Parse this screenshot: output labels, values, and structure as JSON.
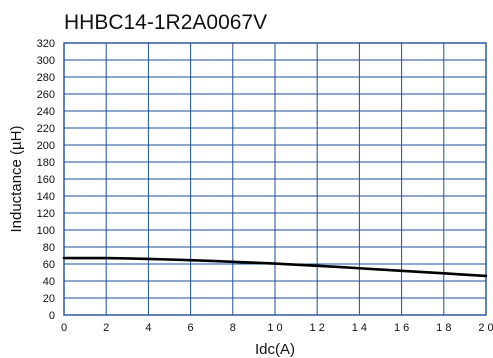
{
  "chart_data": {
    "type": "line",
    "title": "HHBC14-1R2A0067V",
    "xlabel": "Idc(A)",
    "ylabel": "Inductance (µH)",
    "xlim": [
      0,
      20
    ],
    "ylim": [
      0,
      320
    ],
    "x_ticks": [
      "0",
      "2",
      "4",
      "6",
      "8",
      "1 0",
      "1 2",
      "1 4",
      "1 6",
      "1 8",
      "2 0"
    ],
    "x_tick_values": [
      0,
      2,
      4,
      6,
      8,
      10,
      12,
      14,
      16,
      18,
      20
    ],
    "y_ticks": [
      "0",
      "20",
      "40",
      "60",
      "80",
      "100",
      "120",
      "140",
      "160",
      "180",
      "200",
      "220",
      "240",
      "260",
      "280",
      "300",
      "320"
    ],
    "y_tick_values": [
      0,
      20,
      40,
      60,
      80,
      100,
      120,
      140,
      160,
      180,
      200,
      220,
      240,
      260,
      280,
      300,
      320
    ],
    "grid": true,
    "series": [
      {
        "x": [
          0,
          1,
          2,
          3,
          4,
          5,
          6,
          7,
          8,
          9,
          10,
          11,
          12,
          13,
          14,
          15,
          16,
          17,
          18,
          19,
          20
        ],
        "values": [
          67,
          67,
          67,
          66.6,
          66,
          65.3,
          64.5,
          63.6,
          62.6,
          61.6,
          60.5,
          59.2,
          57.9,
          56.5,
          55,
          53.5,
          52,
          50.5,
          49,
          47.4,
          46
        ]
      }
    ],
    "colors": {
      "grid": "#1f4e9c",
      "frame": "#1f4e9c",
      "line": "#000000",
      "text": "#111111"
    }
  }
}
